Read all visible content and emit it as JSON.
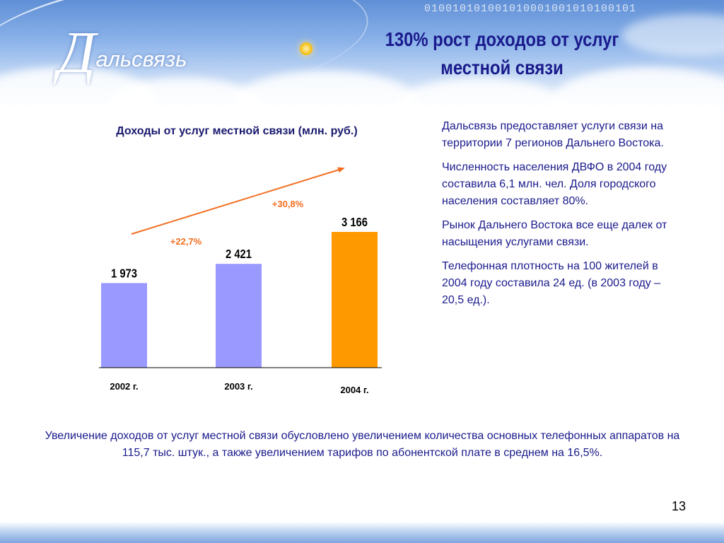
{
  "slide": {
    "title_line1": "130% рост доходов от услуг",
    "title_line2": "местной связи",
    "page_number": "13"
  },
  "logo": {
    "first_letter": "Д",
    "rest": "альсвязь"
  },
  "header": {
    "binary_pattern": "010010101001010001001010100101"
  },
  "right_text": [
    "Дальсвязь предоставляет услуги связи на территории 7 регионов Дальнего Востока.",
    "Численность населения ДВФО в 2004 году составила 6,1 млн. чел. Доля городского населения составляет 80%.",
    "Рынок Дальнего Востока все еще далек от насыщения услугами связи.",
    "Телефонная плотность на 100 жителей в 2004 году составила 24 ед. (в 2003 году – 20,5 ед.)."
  ],
  "bottom_text": "Увеличение доходов от услуг местной связи обусловлено увеличением количества основных телефонных аппаратов на 115,7 тыс. штук., а также увеличением тарифов по абонентской плате в среднем на 16,5%.",
  "chart_data": {
    "type": "bar",
    "title": "Доходы от услуг местной связи (млн. руб.)",
    "categories": [
      "2002 г.",
      "2003 г.",
      "2004 г."
    ],
    "values": [
      1973,
      2421,
      3166
    ],
    "value_labels": [
      "1 973",
      "2 421",
      "3 166"
    ],
    "bar_colors": [
      "#9999ff",
      "#9999ff",
      "#ff9900"
    ],
    "growth_labels": [
      "+22,7%",
      "+30,8%"
    ],
    "arrow_color": "#f26f21",
    "ylim": [
      0,
      3166
    ],
    "xlabel": "",
    "ylabel": "",
    "grid": false
  }
}
